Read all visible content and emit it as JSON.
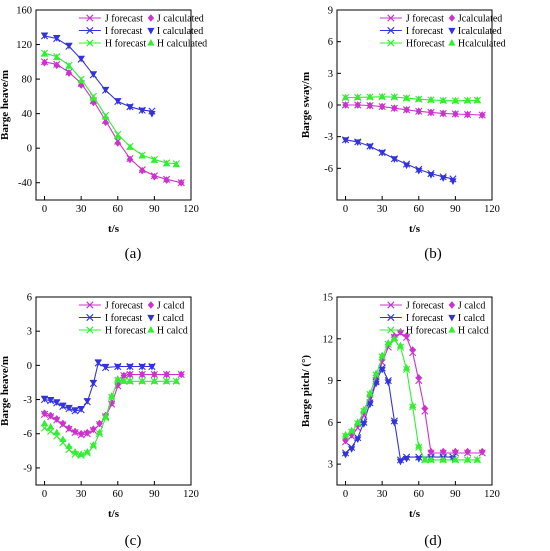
{
  "chart_data": [
    {
      "type": "line",
      "panel_label": "(a)",
      "xlabel": "t/s",
      "ylabel": "Barge heave/m",
      "xlim": [
        -7,
        120
      ],
      "ylim": [
        -60,
        160
      ],
      "xticks": [
        0,
        30,
        60,
        90,
        120
      ],
      "yticks": [
        -40,
        0,
        40,
        80,
        120,
        160
      ],
      "legend_position": "top-right",
      "legend": [
        {
          "label": "J  forecast",
          "series": 0
        },
        {
          "label": "J calculated",
          "series": 1
        },
        {
          "label": "I  forecast",
          "series": 2
        },
        {
          "label": "I calculated",
          "series": 3
        },
        {
          "label": "H forecast",
          "series": 4
        },
        {
          "label": "H calculated",
          "series": 5
        }
      ],
      "series": [
        {
          "color": "#cc33cc",
          "marker": "x",
          "line": true,
          "x": [
            0,
            10,
            20,
            30,
            40,
            50,
            60,
            70,
            80,
            90,
            100,
            112
          ],
          "y": [
            100,
            97,
            88,
            75,
            55,
            32,
            8,
            -12,
            -25,
            -32,
            -36,
            -40
          ]
        },
        {
          "color": "#cc33cc",
          "marker": "diamond",
          "line": false,
          "x": [
            0,
            10,
            20,
            30,
            40,
            50,
            60,
            70,
            80,
            90,
            100,
            112
          ],
          "y": [
            99,
            96,
            87,
            73,
            53,
            30,
            6,
            -13,
            -26,
            -33,
            -37,
            -40
          ]
        },
        {
          "color": "#3333dd",
          "marker": "x",
          "line": true,
          "x": [
            0,
            10,
            20,
            30,
            40,
            50,
            60,
            70,
            80,
            88
          ],
          "y": [
            130,
            127,
            118,
            103,
            85,
            67,
            54,
            48,
            44,
            43
          ]
        },
        {
          "color": "#3333dd",
          "marker": "tri-down",
          "line": false,
          "x": [
            0,
            10,
            20,
            30,
            40,
            50,
            60,
            70,
            80,
            88
          ],
          "y": [
            131,
            128,
            119,
            104,
            86,
            68,
            55,
            48,
            44,
            40
          ]
        },
        {
          "color": "#33ee33",
          "marker": "x",
          "line": true,
          "x": [
            0,
            10,
            20,
            30,
            40,
            50,
            60,
            70,
            80,
            90,
            100,
            108
          ],
          "y": [
            110,
            106,
            96,
            80,
            60,
            38,
            16,
            2,
            -8,
            -13,
            -17,
            -18
          ]
        },
        {
          "color": "#33ee33",
          "marker": "tri-up",
          "line": false,
          "x": [
            0,
            10,
            20,
            30,
            40,
            50,
            60,
            70,
            80,
            90,
            100,
            108
          ],
          "y": [
            109,
            105,
            95,
            78,
            58,
            36,
            14,
            1,
            -9,
            -14,
            -18,
            -19
          ]
        }
      ]
    },
    {
      "type": "line",
      "panel_label": "(b)",
      "xlabel": "t/s",
      "ylabel": "Barge sway/m",
      "xlim": [
        -7,
        120
      ],
      "ylim": [
        -9,
        9
      ],
      "xticks": [
        0,
        30,
        60,
        90,
        120
      ],
      "yticks": [
        -6,
        -3,
        0,
        3,
        6,
        9
      ],
      "legend_position": "top-right",
      "legend": [
        {
          "label": "J  forecast",
          "series": 0
        },
        {
          "label": "Jcalculated",
          "series": 1
        },
        {
          "label": "I  forecast",
          "series": 2
        },
        {
          "label": "Icalculated",
          "series": 3
        },
        {
          "label": "Hforecast",
          "series": 4
        },
        {
          "label": "Hcalculated",
          "series": 5
        }
      ],
      "series": [
        {
          "color": "#cc33cc",
          "marker": "x",
          "line": true,
          "x": [
            0,
            10,
            20,
            30,
            40,
            50,
            60,
            70,
            80,
            90,
            100,
            112
          ],
          "y": [
            0,
            0,
            -0.05,
            -0.15,
            -0.3,
            -0.45,
            -0.6,
            -0.7,
            -0.8,
            -0.85,
            -0.9,
            -0.95
          ]
        },
        {
          "color": "#cc33cc",
          "marker": "diamond",
          "line": false,
          "x": [
            0,
            10,
            20,
            30,
            40,
            50,
            60,
            70,
            80,
            90,
            100,
            112
          ],
          "y": [
            0,
            0,
            -0.05,
            -0.15,
            -0.3,
            -0.45,
            -0.6,
            -0.7,
            -0.8,
            -0.85,
            -0.9,
            -0.95
          ]
        },
        {
          "color": "#3333dd",
          "marker": "x",
          "line": true,
          "x": [
            0,
            10,
            20,
            30,
            40,
            50,
            60,
            70,
            80,
            88
          ],
          "y": [
            -3.3,
            -3.5,
            -3.9,
            -4.5,
            -5.1,
            -5.6,
            -6.1,
            -6.5,
            -6.8,
            -7.0
          ]
        },
        {
          "color": "#3333dd",
          "marker": "tri-down",
          "line": false,
          "x": [
            0,
            10,
            20,
            30,
            40,
            50,
            60,
            70,
            80,
            88
          ],
          "y": [
            -3.3,
            -3.5,
            -3.9,
            -4.5,
            -5.1,
            -5.7,
            -6.2,
            -6.6,
            -6.9,
            -7.2
          ]
        },
        {
          "color": "#33ee33",
          "marker": "x",
          "line": true,
          "x": [
            0,
            10,
            20,
            30,
            40,
            50,
            60,
            70,
            80,
            90,
            100,
            108
          ],
          "y": [
            0.7,
            0.72,
            0.75,
            0.78,
            0.75,
            0.65,
            0.55,
            0.48,
            0.42,
            0.4,
            0.42,
            0.45
          ]
        },
        {
          "color": "#33ee33",
          "marker": "tri-up",
          "line": false,
          "x": [
            0,
            10,
            20,
            30,
            40,
            50,
            60,
            70,
            80,
            90,
            100,
            108
          ],
          "y": [
            0.7,
            0.72,
            0.75,
            0.78,
            0.75,
            0.65,
            0.55,
            0.48,
            0.42,
            0.4,
            0.42,
            0.45
          ]
        }
      ]
    },
    {
      "type": "line",
      "panel_label": "(c)",
      "xlabel": "t/s",
      "ylabel": "Barge heave/m",
      "xlim": [
        -7,
        120
      ],
      "ylim": [
        -10.5,
        6
      ],
      "xticks": [
        0,
        30,
        60,
        90,
        120
      ],
      "yticks": [
        -9,
        -6,
        -3,
        0,
        3,
        6
      ],
      "legend_position": "top-right",
      "legend": [
        {
          "label": "J forecast",
          "series": 0
        },
        {
          "label": "J calcd",
          "series": 1
        },
        {
          "label": "I forecast",
          "series": 2
        },
        {
          "label": "I calcd",
          "series": 3
        },
        {
          "label": "H forecast",
          "series": 4
        },
        {
          "label": "H calcd",
          "series": 5
        }
      ],
      "series": [
        {
          "color": "#cc33cc",
          "marker": "x",
          "line": true,
          "x": [
            0,
            5,
            10,
            15,
            20,
            25,
            30,
            35,
            40,
            45,
            50,
            55,
            60,
            65,
            70,
            80,
            90,
            100,
            112
          ],
          "y": [
            -4.3,
            -4.5,
            -4.8,
            -5.2,
            -5.6,
            -5.9,
            -6.1,
            -6.0,
            -5.7,
            -5.2,
            -4.5,
            -3.4,
            -1.8,
            -0.9,
            -0.8,
            -0.8,
            -0.8,
            -0.8,
            -0.8
          ]
        },
        {
          "color": "#cc33cc",
          "marker": "diamond",
          "line": false,
          "x": [
            0,
            5,
            10,
            15,
            20,
            25,
            30,
            35,
            40,
            45,
            50,
            55,
            60,
            65,
            70,
            80,
            90,
            100,
            112
          ],
          "y": [
            -4.2,
            -4.4,
            -4.7,
            -5.1,
            -5.5,
            -5.8,
            -6.0,
            -5.9,
            -5.6,
            -5.1,
            -4.4,
            -3.3,
            -1.7,
            -0.9,
            -0.8,
            -0.8,
            -0.8,
            -0.8,
            -0.8
          ]
        },
        {
          "color": "#3333dd",
          "marker": "x",
          "line": true,
          "x": [
            0,
            5,
            10,
            15,
            20,
            25,
            30,
            35,
            40,
            44,
            50,
            60,
            70,
            80,
            88
          ],
          "y": [
            -3.0,
            -3.1,
            -3.3,
            -3.6,
            -3.8,
            -4.0,
            -3.9,
            -3.2,
            -1.6,
            0.2,
            -0.2,
            -0.1,
            -0.1,
            -0.1,
            -0.1
          ]
        },
        {
          "color": "#3333dd",
          "marker": "tri-down",
          "line": false,
          "x": [
            0,
            5,
            10,
            15,
            20,
            25,
            30,
            35,
            40,
            44,
            50,
            60,
            70,
            80,
            88
          ],
          "y": [
            -2.9,
            -3.0,
            -3.2,
            -3.5,
            -3.7,
            -3.9,
            -3.8,
            -3.1,
            -1.5,
            0.3,
            -0.1,
            -0.1,
            -0.1,
            -0.1,
            -0.1
          ]
        },
        {
          "color": "#33ee33",
          "marker": "x",
          "line": true,
          "x": [
            0,
            5,
            10,
            15,
            20,
            25,
            30,
            35,
            40,
            45,
            50,
            55,
            60,
            65,
            70,
            80,
            90,
            100,
            108
          ],
          "y": [
            -5.5,
            -5.8,
            -6.2,
            -6.8,
            -7.4,
            -7.8,
            -7.9,
            -7.7,
            -7.1,
            -6.0,
            -4.6,
            -2.8,
            -1.3,
            -1.4,
            -1.4,
            -1.4,
            -1.4,
            -1.4,
            -1.4
          ]
        },
        {
          "color": "#33ee33",
          "marker": "tri-up",
          "line": false,
          "x": [
            0,
            5,
            10,
            15,
            20,
            25,
            30,
            35,
            40,
            45,
            50,
            55,
            60,
            65,
            70,
            80,
            90,
            100,
            108
          ],
          "y": [
            -5.1,
            -5.4,
            -5.9,
            -6.5,
            -7.1,
            -7.6,
            -7.8,
            -7.6,
            -7.0,
            -5.9,
            -4.5,
            -2.7,
            -1.2,
            -1.4,
            -1.4,
            -1.4,
            -1.4,
            -1.4,
            -1.4
          ]
        }
      ]
    },
    {
      "type": "line",
      "panel_label": "(d)",
      "xlabel": "t/s",
      "ylabel": "Barge pitch/ (°)",
      "xlim": [
        -7,
        120
      ],
      "ylim": [
        1.5,
        15
      ],
      "xticks": [
        0,
        30,
        60,
        90,
        120
      ],
      "yticks": [
        3,
        6,
        9,
        12,
        15
      ],
      "legend_position": "top-right",
      "legend": [
        {
          "label": "J forecast",
          "series": 0
        },
        {
          "label": "J calcd",
          "series": 1
        },
        {
          "label": "I forecast",
          "series": 2
        },
        {
          "label": "I calcd",
          "series": 3
        },
        {
          "label": "H forecast",
          "series": 4
        },
        {
          "label": "H calcd",
          "series": 5
        }
      ],
      "series": [
        {
          "color": "#cc33cc",
          "marker": "x",
          "line": true,
          "x": [
            0,
            5,
            10,
            15,
            20,
            25,
            30,
            35,
            40,
            45,
            50,
            55,
            60,
            65,
            70,
            80,
            90,
            100,
            112
          ],
          "y": [
            4.6,
            5.0,
            5.6,
            6.5,
            7.7,
            9.0,
            10.3,
            11.4,
            12.1,
            12.4,
            12.1,
            11.0,
            9.0,
            6.8,
            3.8,
            3.8,
            3.8,
            3.8,
            3.8
          ]
        },
        {
          "color": "#cc33cc",
          "marker": "diamond",
          "line": false,
          "x": [
            0,
            5,
            10,
            15,
            20,
            25,
            30,
            35,
            40,
            45,
            50,
            55,
            60,
            65,
            70,
            80,
            90,
            100,
            112
          ],
          "y": [
            4.7,
            5.1,
            5.8,
            6.7,
            7.9,
            9.2,
            10.5,
            11.6,
            12.2,
            12.5,
            12.2,
            11.2,
            9.2,
            7.0,
            3.9,
            3.9,
            3.9,
            3.9,
            3.9
          ]
        },
        {
          "color": "#3333dd",
          "marker": "x",
          "line": true,
          "x": [
            0,
            5,
            10,
            15,
            20,
            25,
            30,
            35,
            40,
            45,
            50,
            60,
            70,
            80,
            88
          ],
          "y": [
            3.8,
            4.2,
            4.9,
            6.0,
            7.4,
            8.9,
            9.9,
            9.0,
            6.1,
            3.3,
            3.5,
            3.5,
            3.5,
            3.5,
            3.5
          ]
        },
        {
          "color": "#3333dd",
          "marker": "tri-down",
          "line": false,
          "x": [
            0,
            5,
            10,
            15,
            20,
            25,
            30,
            35,
            40,
            45,
            50,
            60,
            70,
            80,
            88
          ],
          "y": [
            3.7,
            4.1,
            4.8,
            5.9,
            7.3,
            8.8,
            9.8,
            8.9,
            6.0,
            3.2,
            3.4,
            3.4,
            3.4,
            3.4,
            3.4
          ]
        },
        {
          "color": "#33ee33",
          "marker": "x",
          "line": true,
          "x": [
            0,
            5,
            10,
            15,
            20,
            25,
            30,
            35,
            40,
            45,
            50,
            55,
            60,
            65,
            70,
            80,
            90,
            100,
            108
          ],
          "y": [
            5.0,
            5.3,
            5.9,
            6.8,
            8.0,
            9.4,
            10.7,
            11.6,
            11.9,
            11.4,
            9.8,
            7.1,
            4.2,
            3.3,
            3.3,
            3.3,
            3.3,
            3.3,
            3.3
          ]
        },
        {
          "color": "#33ee33",
          "marker": "tri-up",
          "line": false,
          "x": [
            0,
            5,
            10,
            15,
            20,
            25,
            30,
            35,
            40,
            45,
            50,
            55,
            60,
            65,
            70,
            80,
            90,
            100,
            108
          ],
          "y": [
            5.1,
            5.4,
            6.0,
            6.9,
            8.1,
            9.5,
            10.8,
            11.7,
            12.0,
            11.5,
            9.9,
            7.2,
            4.3,
            3.3,
            3.3,
            3.3,
            3.3,
            3.3,
            3.3
          ]
        }
      ]
    }
  ]
}
